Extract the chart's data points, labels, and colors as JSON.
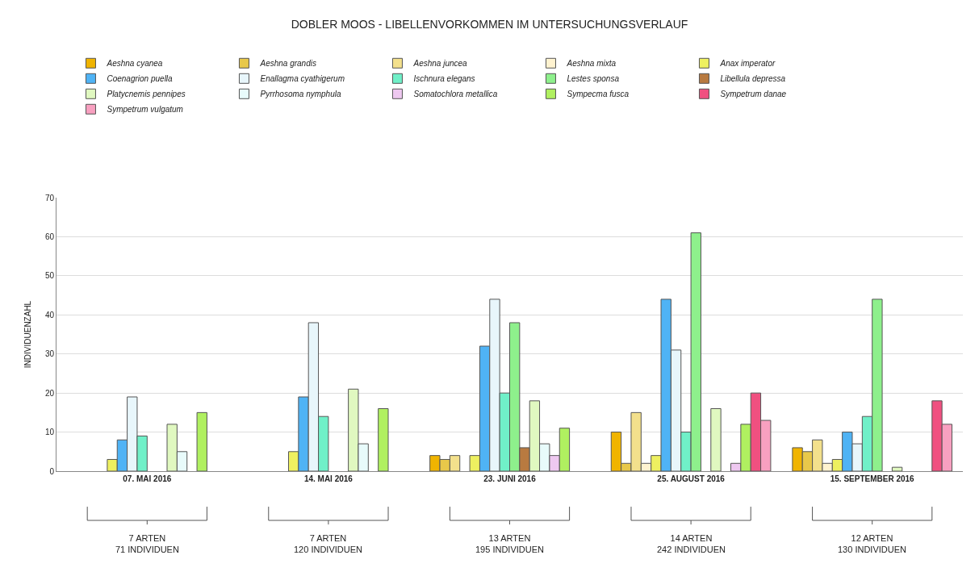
{
  "chart_data": {
    "type": "bar",
    "title": "DOBLER MOOS - LIBELLENVORKOMMEN IM UNTERSUCHUNGSVERLAUF",
    "ylabel": "INDIVIDUENZAHL",
    "categories": [
      "07. MAI 2016",
      "14. MAI 2016",
      "23. JUNI 2016",
      "25. AUGUST 2016",
      "15. SEPTEMBER 2016"
    ],
    "series": [
      {
        "name": "Aeshna cyanea",
        "color": "#f0b400",
        "values": [
          null,
          null,
          4,
          10,
          6
        ]
      },
      {
        "name": "Aeshna grandis",
        "color": "#e8c84a",
        "values": [
          null,
          null,
          3,
          2,
          5
        ]
      },
      {
        "name": "Aeshna juncea",
        "color": "#f3e08c",
        "values": [
          null,
          null,
          4,
          15,
          8
        ]
      },
      {
        "name": "Aeshna mixta",
        "color": "#fff3d0",
        "values": [
          null,
          null,
          null,
          2,
          2
        ]
      },
      {
        "name": "Anax imperator",
        "color": "#eef060",
        "values": [
          3,
          5,
          4,
          4,
          3
        ]
      },
      {
        "name": "Coenagrion puella",
        "color": "#4fb3f5",
        "values": [
          8,
          19,
          32,
          44,
          10
        ]
      },
      {
        "name": "Enallagma cyathigerum",
        "color": "#e8f6fb",
        "values": [
          19,
          38,
          44,
          31,
          7
        ]
      },
      {
        "name": "Ischnura elegans",
        "color": "#70f0c8",
        "values": [
          9,
          14,
          20,
          10,
          14
        ]
      },
      {
        "name": "Lestes sponsa",
        "color": "#8ef08c",
        "values": [
          null,
          null,
          38,
          61,
          44
        ]
      },
      {
        "name": "Libellula depressa",
        "color": "#b87a40",
        "values": [
          null,
          null,
          6,
          null,
          null
        ]
      },
      {
        "name": "Platycnemis pennipes",
        "color": "#e0f8c0",
        "values": [
          12,
          21,
          18,
          16,
          1
        ]
      },
      {
        "name": "Pyrrhosoma nymphula",
        "color": "#e8fbfb",
        "values": [
          5,
          7,
          7,
          null,
          null
        ]
      },
      {
        "name": "Somatochlora metallica",
        "color": "#eec8f0",
        "values": [
          null,
          null,
          4,
          2,
          null
        ]
      },
      {
        "name": "Sympecma fusca",
        "color": "#b0f060",
        "values": [
          15,
          16,
          11,
          12,
          null
        ]
      },
      {
        "name": "Sympetrum danae",
        "color": "#f05080",
        "values": [
          null,
          null,
          null,
          20,
          18
        ]
      },
      {
        "name": "Sympetrum vulgatum",
        "color": "#f8a0c0",
        "values": [
          null,
          null,
          null,
          13,
          12
        ]
      }
    ],
    "ylim": [
      0,
      70
    ],
    "yticks": [
      0,
      10,
      20,
      30,
      40,
      50,
      60,
      70
    ],
    "grid": "y",
    "legend": "top",
    "annotations": [
      "7 ARTEN\n71 INDIVIDUEN",
      "7 ARTEN\n120 INDIVIDUEN",
      "13 ARTEN\n195 INDIVIDUEN",
      "14 ARTEN\n242 INDIVIDUEN",
      "12 ARTEN\n130 INDIVIDUEN"
    ]
  }
}
